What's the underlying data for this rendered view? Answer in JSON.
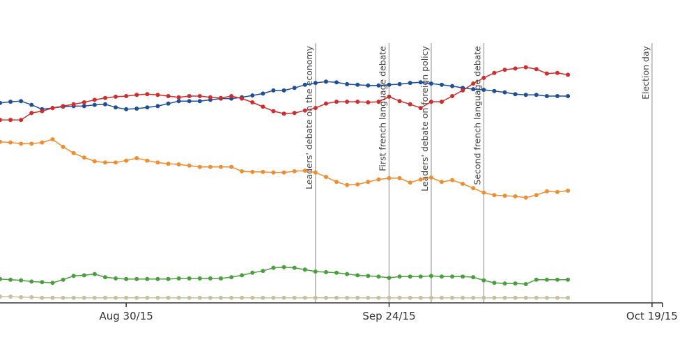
{
  "chart_data": {
    "type": "line",
    "x": [
      "2015-08-18",
      "2015-08-19",
      "2015-08-20",
      "2015-08-21",
      "2015-08-22",
      "2015-08-23",
      "2015-08-24",
      "2015-08-25",
      "2015-08-26",
      "2015-08-27",
      "2015-08-28",
      "2015-08-29",
      "2015-08-30",
      "2015-08-31",
      "2015-09-01",
      "2015-09-02",
      "2015-09-03",
      "2015-09-04",
      "2015-09-05",
      "2015-09-06",
      "2015-09-07",
      "2015-09-08",
      "2015-09-09",
      "2015-09-10",
      "2015-09-11",
      "2015-09-12",
      "2015-09-13",
      "2015-09-14",
      "2015-09-15",
      "2015-09-16",
      "2015-09-17",
      "2015-09-18",
      "2015-09-19",
      "2015-09-20",
      "2015-09-21",
      "2015-09-22",
      "2015-09-23",
      "2015-09-24",
      "2015-09-25",
      "2015-09-26",
      "2015-09-27",
      "2015-09-28",
      "2015-09-29",
      "2015-09-30",
      "2015-10-01",
      "2015-10-02",
      "2015-10-03",
      "2015-10-04",
      "2015-10-05",
      "2015-10-06",
      "2015-10-07",
      "2015-10-08",
      "2015-10-09",
      "2015-10-10",
      "2015-10-11"
    ],
    "series": [
      {
        "color": "#1f4e96",
        "values": [
          31.9,
          32.1,
          32.2,
          31.6,
          30.9,
          31.1,
          31.3,
          31.4,
          31.4,
          31.6,
          31.7,
          31.2,
          30.9,
          31.0,
          31.2,
          31.4,
          31.8,
          32.2,
          32.2,
          32.2,
          32.4,
          32.6,
          32.6,
          32.8,
          33.1,
          33.4,
          33.9,
          33.9,
          34.3,
          34.8,
          35.1,
          35.3,
          35.2,
          34.9,
          34.8,
          34.7,
          34.7,
          34.8,
          34.9,
          35.1,
          35.2,
          35.0,
          34.8,
          34.6,
          34.3,
          34.1,
          34.0,
          33.8,
          33.6,
          33.3,
          33.2,
          33.2,
          33.0,
          33.0,
          33.0
        ]
      },
      {
        "color": "#d12b2b",
        "values": [
          29.2,
          29.2,
          29.2,
          30.3,
          30.6,
          31.1,
          31.4,
          31.7,
          32.0,
          32.4,
          32.7,
          32.9,
          33.0,
          33.2,
          33.3,
          33.2,
          33.0,
          32.8,
          33.0,
          33.0,
          32.8,
          32.7,
          33.0,
          32.6,
          32.0,
          31.3,
          30.6,
          30.2,
          30.3,
          30.7,
          31.1,
          31.8,
          32.1,
          32.1,
          32.1,
          32.0,
          32.1,
          32.9,
          32.2,
          31.7,
          31.1,
          32.1,
          32.1,
          33.0,
          33.9,
          35.0,
          35.9,
          36.7,
          37.2,
          37.4,
          37.6,
          37.3,
          36.6,
          36.7,
          36.4
        ]
      },
      {
        "color": "#ef8d2f",
        "values": [
          25.7,
          25.6,
          25.4,
          25.4,
          25.6,
          26.1,
          24.9,
          23.9,
          23.2,
          22.6,
          22.4,
          22.4,
          22.7,
          23.1,
          22.7,
          22.4,
          22.2,
          22.1,
          21.9,
          21.7,
          21.7,
          21.7,
          21.7,
          21.0,
          20.9,
          20.9,
          20.8,
          20.8,
          21.0,
          21.1,
          20.8,
          20.1,
          19.3,
          18.8,
          18.9,
          19.3,
          19.7,
          19.9,
          19.9,
          19.2,
          19.7,
          20.0,
          19.3,
          19.6,
          19.0,
          18.3,
          17.6,
          17.2,
          17.1,
          17.0,
          16.8,
          17.2,
          17.8,
          17.7,
          17.9
        ]
      },
      {
        "color": "#4a9e3d",
        "values": [
          3.8,
          3.7,
          3.6,
          3.4,
          3.3,
          3.2,
          3.7,
          4.3,
          4.4,
          4.6,
          4.1,
          3.9,
          3.8,
          3.8,
          3.8,
          3.8,
          3.8,
          3.9,
          3.9,
          3.9,
          3.9,
          3.9,
          4.1,
          4.4,
          4.8,
          5.1,
          5.6,
          5.7,
          5.6,
          5.3,
          5.0,
          4.9,
          4.8,
          4.6,
          4.4,
          4.3,
          4.2,
          4.0,
          4.2,
          4.2,
          4.2,
          4.3,
          4.2,
          4.2,
          4.2,
          4.1,
          3.6,
          3.2,
          3.1,
          3.1,
          3.0,
          3.7,
          3.7,
          3.7,
          3.7
        ]
      },
      {
        "color": "#c8c09c",
        "values": [
          1.0,
          1.0,
          0.9,
          0.9,
          0.8,
          0.8,
          0.8,
          0.8,
          0.8,
          0.8,
          0.8,
          0.8,
          0.8,
          0.8,
          0.8,
          0.8,
          0.8,
          0.8,
          0.8,
          0.8,
          0.8,
          0.8,
          0.8,
          0.8,
          0.8,
          0.8,
          0.8,
          0.8,
          0.8,
          0.8,
          0.8,
          0.8,
          0.8,
          0.8,
          0.8,
          0.8,
          0.8,
          0.8,
          0.8,
          0.8,
          0.8,
          0.8,
          0.8,
          0.8,
          0.8,
          0.8,
          0.8,
          0.8,
          0.8,
          0.8,
          0.8,
          0.8,
          0.8,
          0.8,
          0.8
        ]
      }
    ],
    "xlim": [
      "2015-08-18",
      "2015-10-20"
    ],
    "xticks": [
      {
        "value": "2015-08-30",
        "label": "Aug 30/15"
      },
      {
        "value": "2015-09-24",
        "label": "Sep 24/15"
      },
      {
        "value": "2015-10-19",
        "label": "Oct 19/15"
      }
    ],
    "ylim": [
      0,
      41
    ],
    "annotations": [
      {
        "x": "2015-09-17",
        "label": "Leaders' debate on the economy"
      },
      {
        "x": "2015-09-24",
        "label": "First french language debate"
      },
      {
        "x": "2015-09-28",
        "label": "Leaders' debate on foreign policy"
      },
      {
        "x": "2015-10-03",
        "label": "Second french language debate"
      },
      {
        "x": "2015-10-19",
        "label": "Election day"
      }
    ]
  }
}
